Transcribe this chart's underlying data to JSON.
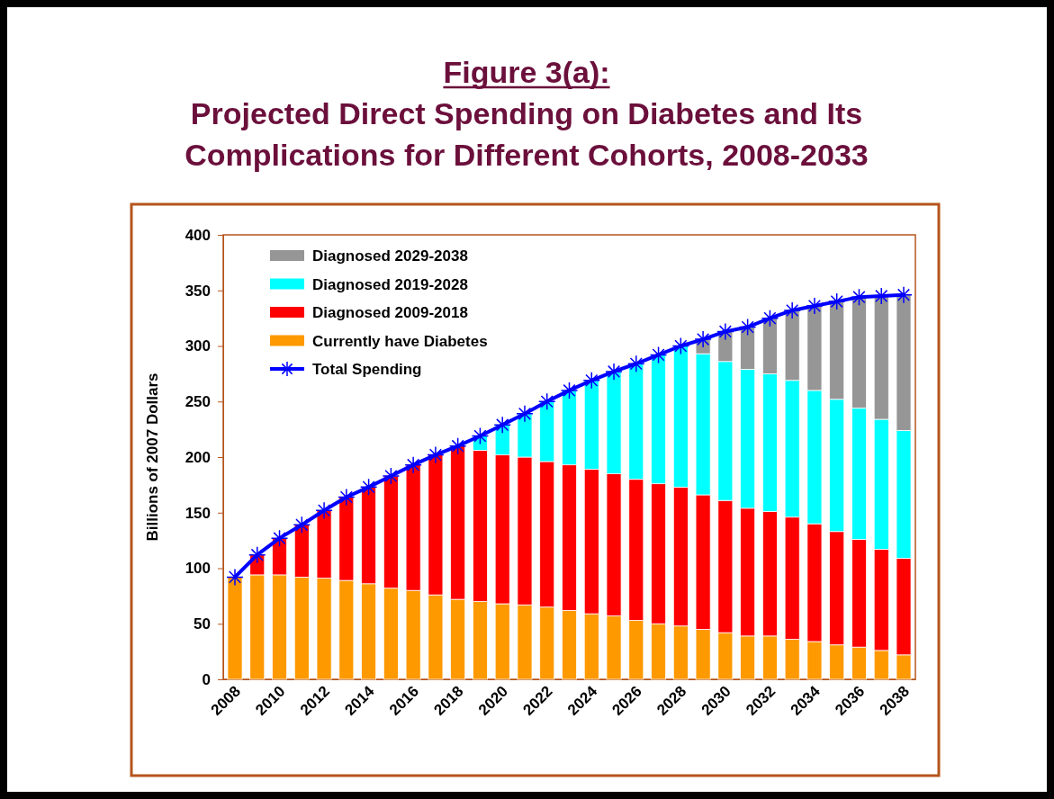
{
  "chart_data": {
    "type": "bar",
    "stacked": true,
    "title": "Figure 3(a):",
    "subtitle": "Projected Direct Spending on Diabetes and Its Complications for Different Cohorts, 2008-2033",
    "ylabel": "Billions of 2007 Dollars",
    "categories": [
      "2008",
      null,
      "2010",
      null,
      "2012",
      null,
      "2014",
      null,
      "2016",
      null,
      "2018",
      null,
      "2020",
      null,
      "2022",
      null,
      "2024",
      null,
      "2026",
      null,
      "2028",
      null,
      "2030",
      null,
      "2032",
      null,
      "2034",
      null,
      "2036",
      null,
      "2038"
    ],
    "ylim": [
      0,
      400
    ],
    "yticks": [
      0,
      50,
      100,
      150,
      200,
      250,
      300,
      350,
      400
    ],
    "legend": "top left",
    "marker": "cross",
    "grid": false,
    "series": [
      {
        "name": "Currently have Diabetes",
        "color": "#ff9900",
        "values": [
          92,
          94,
          94,
          92,
          91,
          89,
          86,
          82,
          80,
          76,
          72,
          70,
          68,
          67,
          65,
          62,
          59,
          57,
          53,
          50,
          48,
          45,
          42,
          39,
          39,
          36,
          34,
          31,
          29,
          26,
          22
        ]
      },
      {
        "name": "Diagnosed 2009-2018",
        "color": "#ff0000",
        "values": [
          null,
          18,
          33,
          47,
          61,
          75,
          87,
          101,
          113,
          126,
          138,
          136,
          134,
          133,
          131,
          131,
          130,
          128,
          127,
          126,
          125,
          121,
          119,
          115,
          112,
          110,
          106,
          102,
          97,
          91,
          87
        ]
      },
      {
        "name": "Diagnosed 2019-2028",
        "color": "#00ffff",
        "values": [
          null,
          null,
          null,
          null,
          null,
          null,
          null,
          null,
          null,
          null,
          null,
          13,
          27,
          39,
          54,
          67,
          80,
          92,
          104,
          116,
          127,
          127,
          125,
          125,
          124,
          123,
          120,
          119,
          118,
          117,
          115
        ]
      },
      {
        "name": "Diagnosed 2029-2038",
        "color": "#969696",
        "values": [
          null,
          null,
          null,
          null,
          null,
          null,
          null,
          null,
          null,
          null,
          null,
          null,
          null,
          null,
          null,
          null,
          null,
          null,
          null,
          null,
          null,
          13,
          27,
          38,
          50,
          63,
          76,
          88,
          100,
          111,
          122
        ]
      },
      {
        "name": "Total Spending",
        "type": "line",
        "color": "#0000ff",
        "values": [
          92,
          112,
          127,
          139,
          152,
          164,
          173,
          183,
          193,
          202,
          210,
          219,
          229,
          239,
          250,
          260,
          269,
          277,
          284,
          292,
          300,
          306,
          313,
          317,
          325,
          332,
          336,
          340,
          344,
          345,
          346
        ]
      }
    ]
  }
}
